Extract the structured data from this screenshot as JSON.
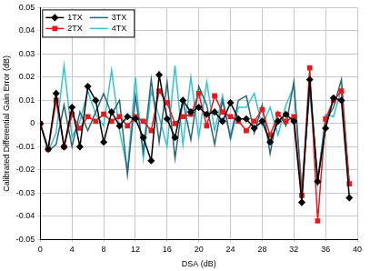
{
  "chart_data": {
    "type": "line",
    "x_label": "DSA (dB)",
    "y_label": "Calibrated Differential Gain Error (dB)",
    "x": [
      0,
      1,
      2,
      3,
      4,
      5,
      6,
      7,
      8,
      9,
      10,
      11,
      12,
      13,
      14,
      15,
      16,
      17,
      18,
      19,
      20,
      21,
      22,
      23,
      24,
      25,
      26,
      27,
      28,
      29,
      30,
      31,
      32,
      33,
      34,
      35,
      36,
      37,
      38,
      39
    ],
    "series": [
      {
        "name": "1TX",
        "color": "#000000",
        "marker": "diamond",
        "values": [
          0,
          -0.011,
          0.013,
          -0.01,
          0.007,
          -0.01,
          0.016,
          0.01,
          -0.008,
          0.005,
          -0.001,
          0.003,
          0.002,
          -0.006,
          -0.016,
          0.021,
          0.002,
          -0.006,
          0.01,
          0.005,
          0.007,
          0.004,
          0.005,
          0.001,
          0.009,
          0.002,
          0.002,
          -0.002,
          0.001,
          -0.008,
          0.001,
          0.004,
          0.001,
          -0.034,
          0.019,
          -0.025,
          -0.002,
          0.011,
          0.01,
          -0.032
        ]
      },
      {
        "name": "2TX",
        "color": "#e41a1c",
        "marker": "square",
        "values": [
          0,
          -0.011,
          0.01,
          -0.01,
          0.004,
          -0.002,
          0.003,
          0.001,
          0.004,
          0.001,
          0.003,
          -0.001,
          0.003,
          0.001,
          -0.003,
          0.014,
          0.009,
          0.0,
          0.003,
          0.004,
          0.013,
          -0.001,
          0.012,
          0.005,
          0.003,
          0.001,
          -0.003,
          0.001,
          0.006,
          -0.005,
          0.004,
          0.001,
          0.003,
          -0.031,
          0.024,
          -0.042,
          0.002,
          0.01,
          0.014,
          -0.026
        ]
      },
      {
        "name": "3TX",
        "color": "#2a6478",
        "marker": "none",
        "values": [
          0,
          -0.012,
          -0.009,
          0.008,
          -0.01,
          0.005,
          -0.003,
          0.005,
          0.013,
          0.004,
          0.01,
          -0.022,
          0.012,
          -0.012,
          0.019,
          -0.008,
          0.018,
          -0.015,
          0.01,
          -0.007,
          0.016,
          0.008,
          -0.009,
          0.01,
          -0.006,
          0.01,
          0.012,
          -0.004,
          0.008,
          -0.013,
          0.005,
          -0.001,
          0.018,
          -0.03,
          0.016,
          -0.024,
          0.001,
          0.007,
          0.019,
          -0.027
        ]
      },
      {
        "name": "4TX",
        "color": "#33c3d8",
        "marker": "none",
        "values": [
          0,
          -0.012,
          -0.004,
          0.025,
          -0.006,
          0.001,
          0.014,
          0.004,
          -0.001,
          0.023,
          -0.003,
          -0.02,
          0.02,
          -0.015,
          0.014,
          0.003,
          -0.01,
          0.025,
          -0.009,
          0.02,
          -0.006,
          0.018,
          -0.003,
          0.012,
          -0.007,
          0.007,
          0.007,
          0.013,
          -0.001,
          0.007,
          -0.005,
          0.008,
          0.016,
          -0.028,
          0.014,
          -0.026,
          0.004,
          0.003,
          0.015,
          -0.027
        ]
      }
    ],
    "xlim": [
      0,
      40
    ],
    "xticks": [
      0,
      4,
      8,
      12,
      16,
      20,
      24,
      28,
      32,
      36,
      40
    ],
    "ylim": [
      -0.05,
      0.05
    ],
    "yticks": [
      -0.05,
      -0.04,
      -0.03,
      -0.02,
      -0.01,
      0,
      0.01,
      0.02,
      0.03,
      0.04,
      0.05
    ],
    "grid": true,
    "legend": "top-left"
  }
}
